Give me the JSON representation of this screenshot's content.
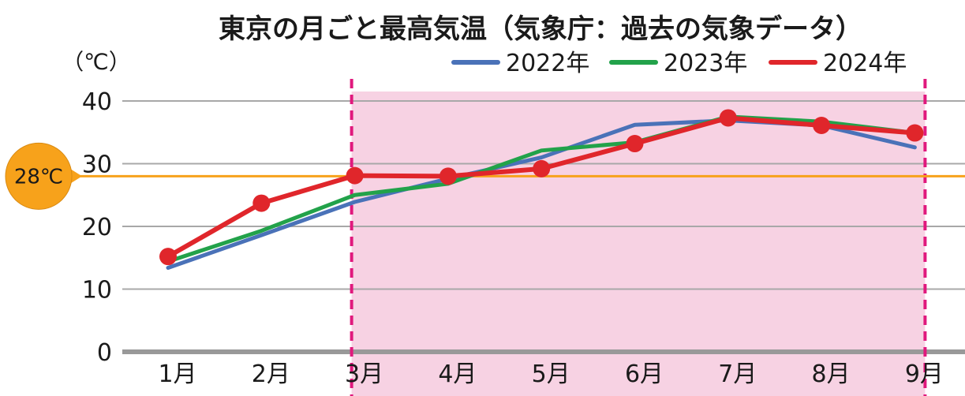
{
  "chart_data": {
    "type": "line",
    "title": "東京の月ごと最高気温（気象庁：過去の気象データ）",
    "y_unit": "（℃）",
    "categories": [
      "1月",
      "2月",
      "3月",
      "4月",
      "5月",
      "6月",
      "7月",
      "8月",
      "9月"
    ],
    "ylim": [
      0,
      40
    ],
    "yticks": [
      "0",
      "10",
      "20",
      "30",
      "40"
    ],
    "grid": true,
    "legend_position": "top-right",
    "series": [
      {
        "name": "2022年",
        "color": "#4a72b8",
        "markers": false,
        "values": [
          13.4,
          18.6,
          23.9,
          27.6,
          31.0,
          36.2,
          36.9,
          36.1,
          32.6
        ]
      },
      {
        "name": "2023年",
        "color": "#22a24a",
        "markers": false,
        "values": [
          14.4,
          19.3,
          25.0,
          26.8,
          32.1,
          33.4,
          37.5,
          36.7,
          34.9
        ]
      },
      {
        "name": "2024年",
        "color": "#e0262b",
        "markers": true,
        "values": [
          15.2,
          23.7,
          28.1,
          28.0,
          29.2,
          33.2,
          37.3,
          36.1,
          34.9
        ]
      }
    ],
    "reference_line": {
      "value": 28,
      "label": "28℃",
      "color": "#f7a21b"
    },
    "highlight": {
      "from": "3月",
      "to": "9月",
      "color": "#f7d2e3",
      "border_color": "#e0197d"
    }
  }
}
